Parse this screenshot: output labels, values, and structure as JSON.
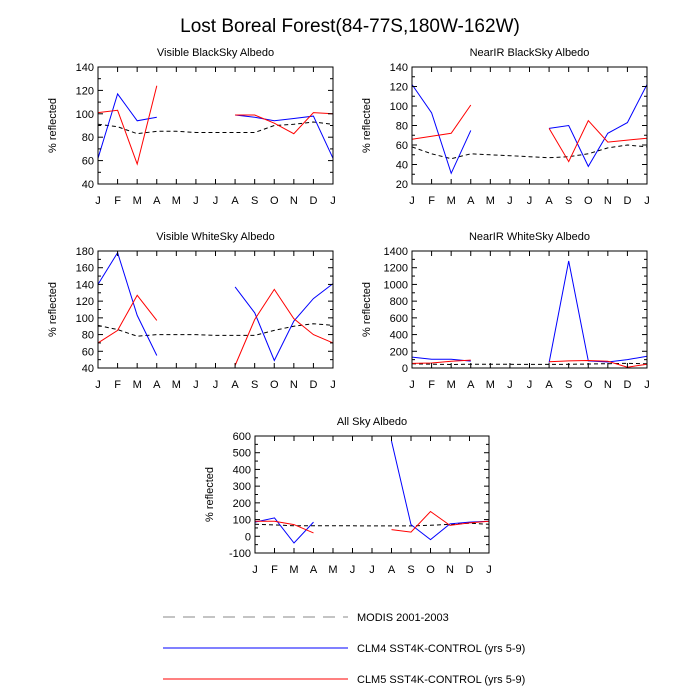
{
  "figure": {
    "title": "Lost Boreal Forest(84-77S,180W-162W)"
  },
  "legend": {
    "entries": [
      {
        "label": "MODIS 2001-2003",
        "style": "dashed",
        "color": "#b0b0b0"
      },
      {
        "label": "CLM4 SST4K-CONTROL (yrs 5-9)",
        "style": "solid",
        "color": "#0000ff"
      },
      {
        "label": "CLM5 SST4K-CONTROL (yrs 5-9)",
        "style": "solid",
        "color": "#ff0000"
      }
    ]
  },
  "chart_data": [
    {
      "type": "line",
      "title": "Visible BlackSky Albedo",
      "xlabel": "",
      "ylabel": "% reflected",
      "categories": [
        "J",
        "F",
        "M",
        "A",
        "M",
        "J",
        "J",
        "A",
        "S",
        "O",
        "N",
        "D",
        "J"
      ],
      "ylim": [
        40,
        140
      ],
      "yticks": [
        40,
        60,
        80,
        100,
        120,
        140
      ],
      "series": [
        {
          "name": "MODIS 2001-2003",
          "color": "#000000",
          "dashed": true,
          "values": [
            91,
            89,
            83,
            85,
            85,
            84,
            84,
            84,
            84,
            90,
            91,
            93,
            91
          ]
        },
        {
          "name": "CLM4 SST4K-CONTROL (yrs 5-9)",
          "color": "#0000ff",
          "dashed": false,
          "values": [
            62,
            117,
            94,
            97,
            null,
            null,
            null,
            99,
            97,
            94,
            96,
            98,
            62
          ]
        },
        {
          "name": "CLM5 SST4K-CONTROL (yrs 5-9)",
          "color": "#ff0000",
          "dashed": false,
          "values": [
            101,
            103,
            57,
            124,
            null,
            null,
            null,
            99,
            99,
            92,
            83,
            101,
            100
          ]
        }
      ]
    },
    {
      "type": "line",
      "title": "NearIR BlackSky Albedo",
      "xlabel": "",
      "ylabel": "% reflected",
      "categories": [
        "J",
        "F",
        "M",
        "A",
        "M",
        "J",
        "J",
        "A",
        "S",
        "O",
        "N",
        "D",
        "J"
      ],
      "ylim": [
        20,
        140
      ],
      "yticks": [
        20,
        40,
        60,
        80,
        100,
        120,
        140
      ],
      "series": [
        {
          "name": "MODIS 2001-2003",
          "color": "#000000",
          "dashed": true,
          "values": [
            58,
            51,
            46,
            51,
            50,
            49,
            48,
            47,
            48,
            51,
            57,
            60,
            58
          ]
        },
        {
          "name": "CLM4 SST4K-CONTROL (yrs 5-9)",
          "color": "#0000ff",
          "dashed": false,
          "values": [
            122,
            93,
            31,
            75,
            null,
            null,
            null,
            77,
            80,
            38,
            72,
            83,
            122
          ]
        },
        {
          "name": "CLM5 SST4K-CONTROL (yrs 5-9)",
          "color": "#ff0000",
          "dashed": false,
          "values": [
            66,
            69,
            72,
            101,
            null,
            null,
            null,
            77,
            43,
            85,
            63,
            65,
            67
          ]
        }
      ]
    },
    {
      "type": "line",
      "title": "Visible WhiteSky Albedo",
      "xlabel": "",
      "ylabel": "% reflected",
      "categories": [
        "J",
        "F",
        "M",
        "A",
        "M",
        "J",
        "J",
        "A",
        "S",
        "O",
        "N",
        "D",
        "J"
      ],
      "ylim": [
        40,
        180
      ],
      "yticks": [
        40,
        60,
        80,
        100,
        120,
        140,
        160,
        180
      ],
      "series": [
        {
          "name": "MODIS 2001-2003",
          "color": "#000000",
          "dashed": true,
          "values": [
            91,
            86,
            78,
            80,
            80,
            80,
            79,
            79,
            79,
            85,
            90,
            93,
            91
          ]
        },
        {
          "name": "CLM4 SST4K-CONTROL (yrs 5-9)",
          "color": "#0000ff",
          "dashed": false,
          "values": [
            140,
            178,
            103,
            55,
            null,
            null,
            null,
            137,
            106,
            49,
            96,
            123,
            141
          ]
        },
        {
          "name": "CLM5 SST4K-CONTROL (yrs 5-9)",
          "color": "#ff0000",
          "dashed": false,
          "values": [
            70,
            85,
            127,
            97,
            null,
            null,
            null,
            43,
            98,
            134,
            99,
            80,
            70
          ]
        }
      ]
    },
    {
      "type": "line",
      "title": "NearIR WhiteSky Albedo",
      "xlabel": "",
      "ylabel": "% reflected",
      "categories": [
        "J",
        "F",
        "M",
        "A",
        "M",
        "J",
        "J",
        "A",
        "S",
        "O",
        "N",
        "D",
        "J"
      ],
      "ylim": [
        0,
        1400
      ],
      "yticks": [
        0,
        200,
        400,
        600,
        800,
        1000,
        1200,
        1400
      ],
      "series": [
        {
          "name": "MODIS 2001-2003",
          "color": "#000000",
          "dashed": true,
          "values": [
            50,
            45,
            42,
            45,
            45,
            44,
            43,
            43,
            44,
            48,
            52,
            56,
            50
          ]
        },
        {
          "name": "CLM4 SST4K-CONTROL (yrs 5-9)",
          "color": "#0000ff",
          "dashed": false,
          "values": [
            130,
            105,
            105,
            82,
            null,
            null,
            null,
            65,
            1280,
            85,
            72,
            100,
            140
          ]
        },
        {
          "name": "CLM5 SST4K-CONTROL (yrs 5-9)",
          "color": "#ff0000",
          "dashed": false,
          "values": [
            55,
            60,
            80,
            95,
            null,
            null,
            null,
            75,
            85,
            90,
            80,
            10,
            45
          ]
        }
      ]
    },
    {
      "type": "line",
      "title": "All Sky Albedo",
      "xlabel": "",
      "ylabel": "% reflected",
      "categories": [
        "J",
        "F",
        "M",
        "A",
        "M",
        "J",
        "J",
        "A",
        "S",
        "O",
        "N",
        "D",
        "J"
      ],
      "ylim": [
        -100,
        600
      ],
      "yticks": [
        -100,
        0,
        100,
        200,
        300,
        400,
        500,
        600
      ],
      "series": [
        {
          "name": "MODIS 2001-2003",
          "color": "#000000",
          "dashed": true,
          "values": [
            72,
            68,
            63,
            63,
            63,
            63,
            62,
            62,
            62,
            66,
            72,
            78,
            72
          ]
        },
        {
          "name": "CLM4 SST4K-CONTROL (yrs 5-9)",
          "color": "#0000ff",
          "dashed": false,
          "values": [
            85,
            110,
            -40,
            85,
            null,
            null,
            null,
            570,
            70,
            -20,
            75,
            85,
            90
          ]
        },
        {
          "name": "CLM5 SST4K-CONTROL (yrs 5-9)",
          "color": "#ff0000",
          "dashed": false,
          "values": [
            90,
            90,
            70,
            20,
            null,
            null,
            null,
            40,
            25,
            148,
            65,
            80,
            90
          ]
        }
      ]
    }
  ]
}
